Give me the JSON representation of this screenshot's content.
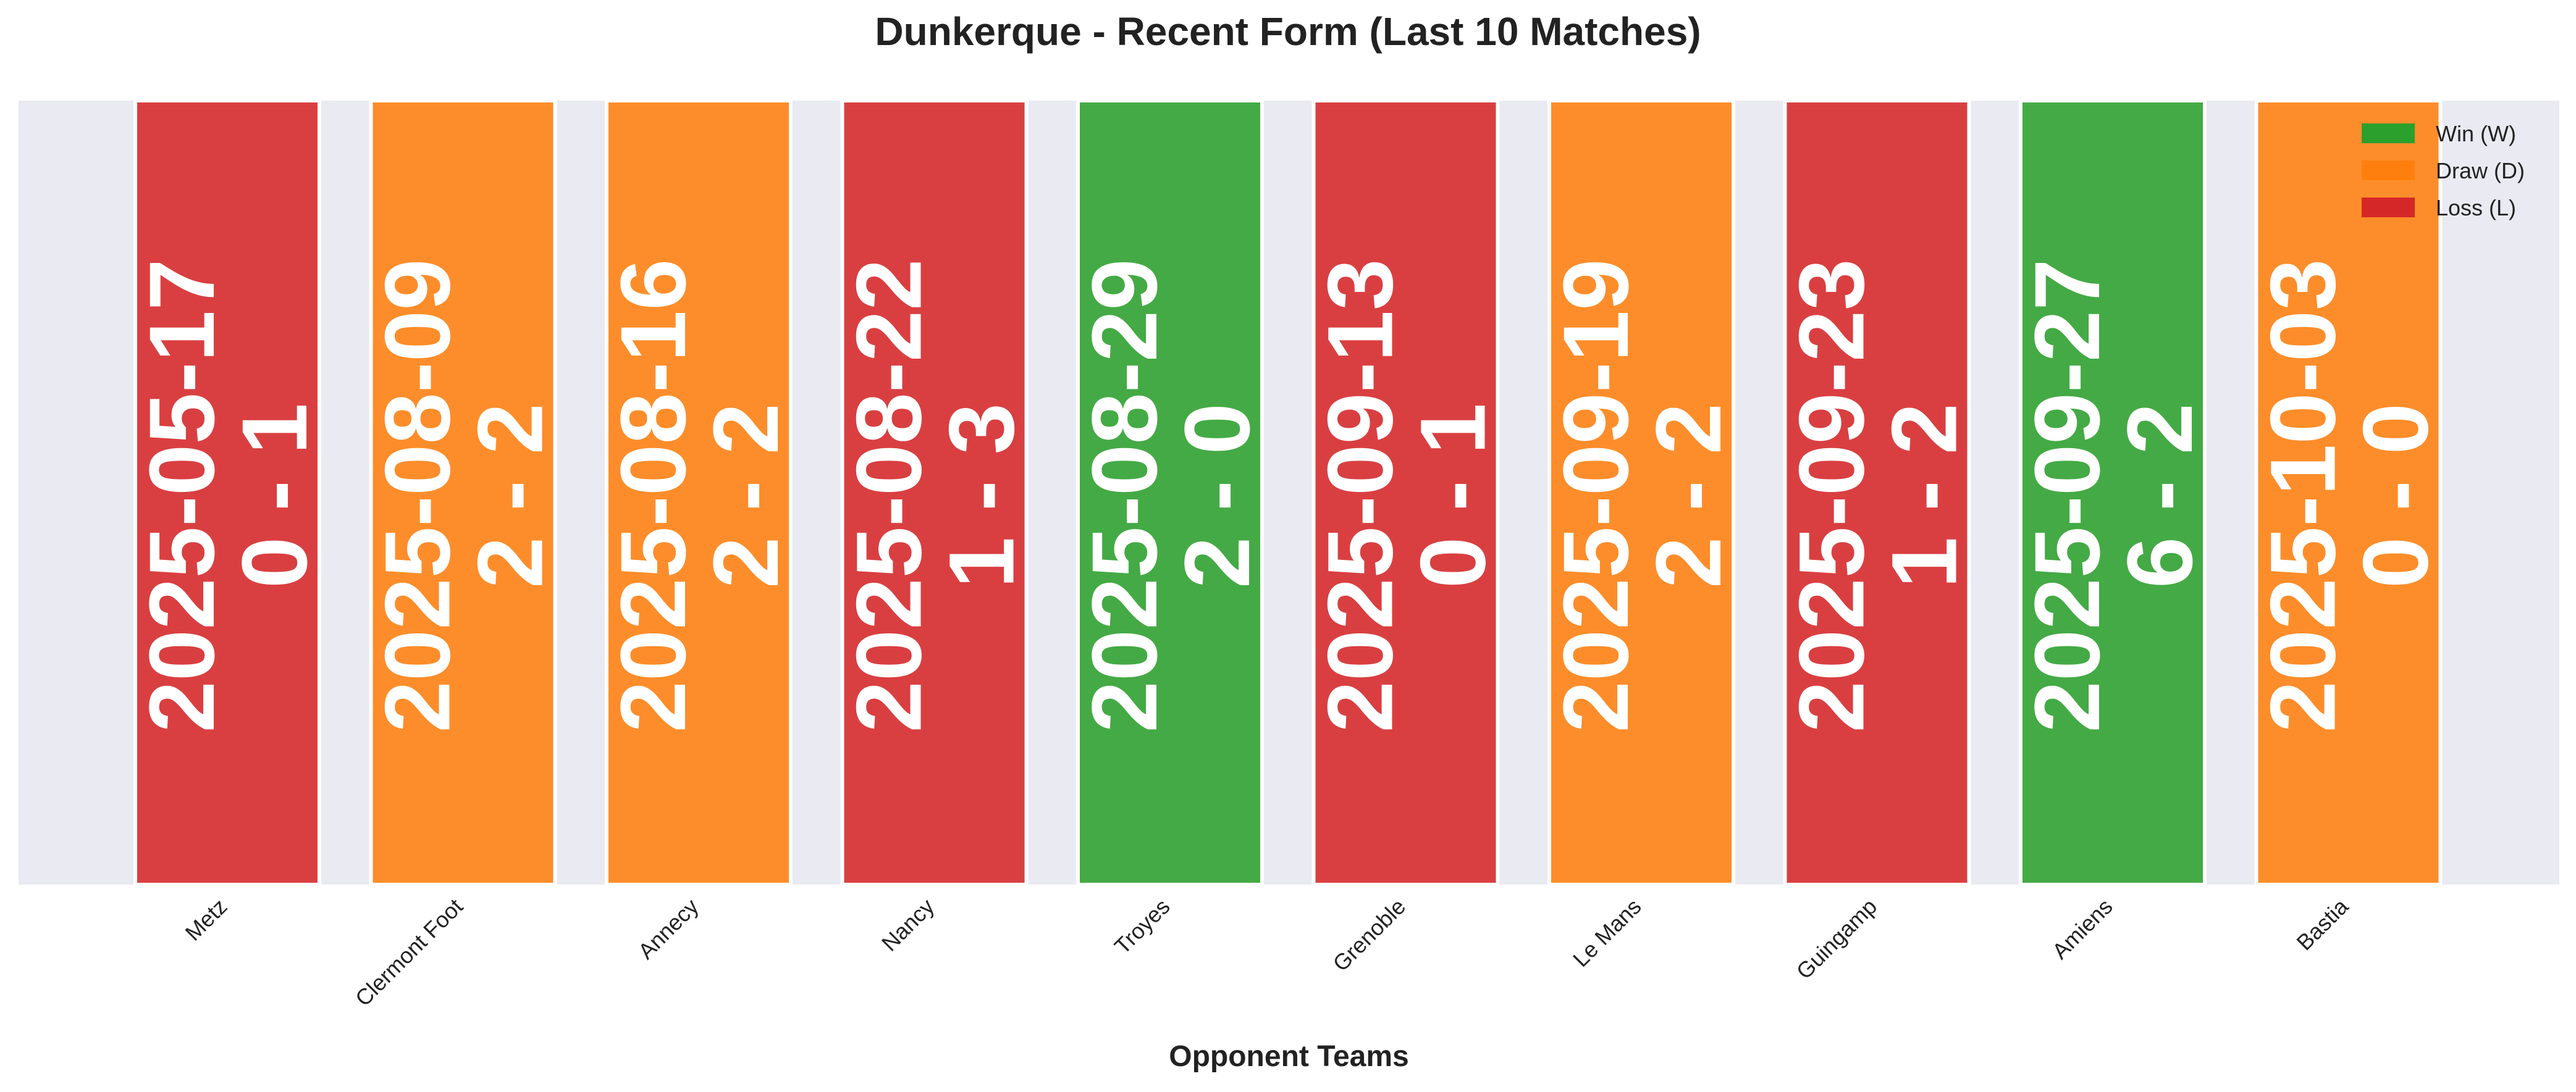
{
  "chart_data": {
    "type": "bar",
    "title": "Dunkerque - Recent Form (Last 10 Matches)",
    "xlabel": "Opponent Teams",
    "ylabel": "",
    "grid": false,
    "legend_position": "top-right",
    "legend": [
      {
        "label": "Win (W)",
        "result": "W",
        "color": "#2ca02c"
      },
      {
        "label": "Draw (D)",
        "result": "D",
        "color": "#ff7f0e"
      },
      {
        "label": "Loss (L)",
        "result": "L",
        "color": "#d62728"
      }
    ],
    "categories": [
      "Metz",
      "Clermont Foot",
      "Annecy",
      "Nancy",
      "Troyes",
      "Grenoble",
      "Le Mans",
      "Guingamp",
      "Amiens",
      "Bastia"
    ],
    "matches": [
      {
        "opponent": "Metz",
        "date": "2025-05-17",
        "score": "0 - 1",
        "result": "L"
      },
      {
        "opponent": "Clermont Foot",
        "date": "2025-08-09",
        "score": "2 - 2",
        "result": "D"
      },
      {
        "opponent": "Annecy",
        "date": "2025-08-16",
        "score": "2 - 2",
        "result": "D"
      },
      {
        "opponent": "Nancy",
        "date": "2025-08-22",
        "score": "1 - 3",
        "result": "L"
      },
      {
        "opponent": "Troyes",
        "date": "2025-08-29",
        "score": "2 - 0",
        "result": "W"
      },
      {
        "opponent": "Grenoble",
        "date": "2025-09-13",
        "score": "0 - 1",
        "result": "L"
      },
      {
        "opponent": "Le Mans",
        "date": "2025-09-19",
        "score": "2 - 2",
        "result": "D"
      },
      {
        "opponent": "Guingamp",
        "date": "2025-09-23",
        "score": "1 - 2",
        "result": "L"
      },
      {
        "opponent": "Amiens",
        "date": "2025-09-27",
        "score": "6 - 2",
        "result": "W"
      },
      {
        "opponent": "Bastia",
        "date": "2025-10-03",
        "score": "0 - 0",
        "result": "D"
      }
    ],
    "values": [
      1,
      1,
      1,
      1,
      1,
      1,
      1,
      1,
      1,
      1
    ],
    "ylim": [
      0,
      1
    ],
    "colors": {
      "W": "#2ca02c",
      "D": "#ff7f0e",
      "L": "#d62728",
      "plot_background": "#eaeaf2"
    }
  }
}
